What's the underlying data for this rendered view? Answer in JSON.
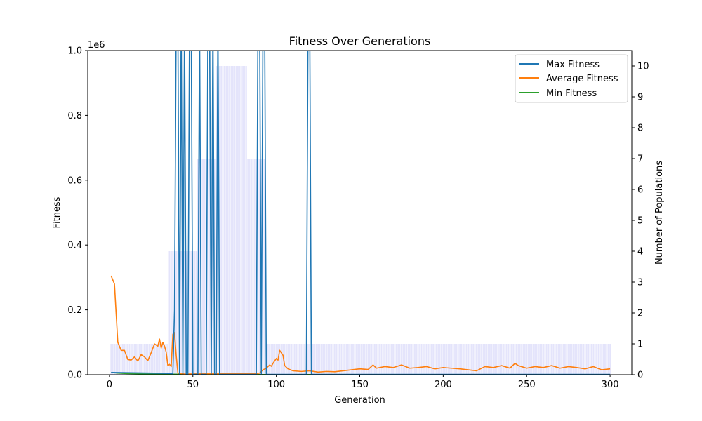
{
  "chart_data": {
    "type": "line",
    "title": "Fitness Over Generations",
    "xlabel": "Generation",
    "ylabel": "Fitness",
    "y2label": "Number of Populations",
    "xlim": [
      -13,
      313
    ],
    "ylim": [
      0,
      1000000
    ],
    "y2lim": [
      0,
      10.5
    ],
    "y_offset_label": "1e6",
    "xticks": [
      0,
      50,
      100,
      150,
      200,
      250,
      300
    ],
    "yticks": [
      0,
      200000,
      400000,
      600000,
      800000,
      1000000
    ],
    "yticklabels": [
      "0.0",
      "0.2",
      "0.4",
      "0.6",
      "0.8",
      "1.0"
    ],
    "y2ticks": [
      0,
      1,
      2,
      3,
      4,
      5,
      6,
      7,
      8,
      9,
      10
    ],
    "grid": false,
    "legend_position": "top-right",
    "colors": {
      "max": "#1f77b4",
      "avg": "#ff7f0e",
      "min": "#2ca02c",
      "bars": "#e4e4fb"
    },
    "population_bars": [
      {
        "from": 1,
        "to": 35,
        "value": 1
      },
      {
        "from": 36,
        "to": 52,
        "value": 4
      },
      {
        "from": 53,
        "to": 63,
        "value": 7
      },
      {
        "from": 64,
        "to": 82,
        "value": 10
      },
      {
        "from": 83,
        "to": 93,
        "value": 7
      },
      {
        "from": 94,
        "to": 300,
        "value": 1
      }
    ],
    "series": [
      {
        "name": "Max Fitness",
        "key": "max",
        "points": [
          [
            1,
            7000
          ],
          [
            36,
            4000
          ],
          [
            38,
            3000
          ],
          [
            39,
            200000
          ],
          [
            40,
            1100000
          ],
          [
            41,
            1100000
          ],
          [
            42,
            1000
          ],
          [
            43,
            1100000
          ],
          [
            44,
            1000
          ],
          [
            45,
            1100000
          ],
          [
            46,
            1000
          ],
          [
            47,
            1000
          ],
          [
            48,
            1100000
          ],
          [
            49,
            1100000
          ],
          [
            50,
            1000
          ],
          [
            53,
            1000
          ],
          [
            54,
            1100000
          ],
          [
            55,
            1000
          ],
          [
            58,
            1000
          ],
          [
            59,
            1100000
          ],
          [
            60,
            1100000
          ],
          [
            61,
            1000
          ],
          [
            62,
            1100000
          ],
          [
            63,
            1000
          ],
          [
            64,
            1000
          ],
          [
            65,
            1100000
          ],
          [
            66,
            1000
          ],
          [
            88,
            1000
          ],
          [
            89,
            1100000
          ],
          [
            90,
            1100000
          ],
          [
            91,
            1000
          ],
          [
            92,
            1100000
          ],
          [
            93,
            1100000
          ],
          [
            94,
            1000
          ],
          [
            118,
            1000
          ],
          [
            119,
            1100000
          ],
          [
            120,
            1100000
          ],
          [
            121,
            1000
          ],
          [
            300,
            1000
          ]
        ]
      },
      {
        "name": "Average Fitness",
        "key": "avg",
        "points": [
          [
            1,
            305000
          ],
          [
            3,
            280000
          ],
          [
            5,
            100000
          ],
          [
            7,
            75000
          ],
          [
            9,
            75000
          ],
          [
            11,
            47000
          ],
          [
            13,
            45000
          ],
          [
            15,
            55000
          ],
          [
            17,
            42000
          ],
          [
            19,
            62000
          ],
          [
            21,
            55000
          ],
          [
            23,
            43000
          ],
          [
            25,
            68000
          ],
          [
            27,
            95000
          ],
          [
            29,
            88000
          ],
          [
            30,
            110000
          ],
          [
            31,
            82000
          ],
          [
            32,
            100000
          ],
          [
            33,
            88000
          ],
          [
            34,
            70000
          ],
          [
            35,
            28000
          ],
          [
            36,
            32000
          ],
          [
            37,
            25000
          ],
          [
            38,
            125000
          ],
          [
            39,
            130000
          ],
          [
            40,
            60000
          ],
          [
            41,
            5000
          ],
          [
            45,
            2000
          ],
          [
            60,
            3000
          ],
          [
            80,
            3000
          ],
          [
            88,
            3000
          ],
          [
            90,
            5000
          ],
          [
            92,
            15000
          ],
          [
            94,
            20000
          ],
          [
            96,
            30000
          ],
          [
            97,
            26000
          ],
          [
            98,
            35000
          ],
          [
            100,
            50000
          ],
          [
            101,
            45000
          ],
          [
            102,
            75000
          ],
          [
            104,
            60000
          ],
          [
            105,
            28000
          ],
          [
            107,
            18000
          ],
          [
            110,
            12000
          ],
          [
            115,
            10000
          ],
          [
            120,
            12000
          ],
          [
            125,
            8000
          ],
          [
            130,
            10000
          ],
          [
            135,
            9000
          ],
          [
            140,
            12000
          ],
          [
            145,
            15000
          ],
          [
            150,
            18000
          ],
          [
            155,
            16000
          ],
          [
            158,
            30000
          ],
          [
            160,
            20000
          ],
          [
            165,
            25000
          ],
          [
            170,
            22000
          ],
          [
            175,
            30000
          ],
          [
            180,
            20000
          ],
          [
            185,
            22000
          ],
          [
            190,
            25000
          ],
          [
            195,
            18000
          ],
          [
            200,
            22000
          ],
          [
            205,
            20000
          ],
          [
            210,
            18000
          ],
          [
            215,
            15000
          ],
          [
            220,
            12000
          ],
          [
            225,
            25000
          ],
          [
            230,
            22000
          ],
          [
            235,
            28000
          ],
          [
            240,
            20000
          ],
          [
            243,
            35000
          ],
          [
            245,
            28000
          ],
          [
            250,
            20000
          ],
          [
            255,
            25000
          ],
          [
            260,
            22000
          ],
          [
            265,
            28000
          ],
          [
            270,
            20000
          ],
          [
            275,
            25000
          ],
          [
            280,
            22000
          ],
          [
            285,
            18000
          ],
          [
            290,
            25000
          ],
          [
            295,
            15000
          ],
          [
            300,
            18000
          ]
        ]
      },
      {
        "name": "Min Fitness",
        "key": "min",
        "points": [
          [
            1,
            7000
          ],
          [
            5,
            5000
          ],
          [
            10,
            3500
          ],
          [
            20,
            2500
          ],
          [
            40,
            1500
          ],
          [
            60,
            1000
          ],
          [
            100,
            500
          ],
          [
            150,
            400
          ],
          [
            200,
            300
          ],
          [
            250,
            300
          ],
          [
            300,
            200
          ]
        ]
      }
    ]
  }
}
